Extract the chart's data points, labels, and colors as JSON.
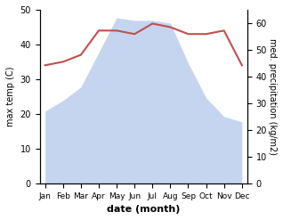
{
  "months": [
    "Jan",
    "Feb",
    "Mar",
    "Apr",
    "May",
    "Jun",
    "Jul",
    "Aug",
    "Sep",
    "Oct",
    "Nov",
    "Dec"
  ],
  "month_indices": [
    0,
    1,
    2,
    3,
    4,
    5,
    6,
    7,
    8,
    9,
    10,
    11
  ],
  "temperature": [
    34,
    35,
    37,
    44,
    44,
    43,
    46,
    45,
    43,
    43,
    44,
    34
  ],
  "precipitation_raw": [
    27,
    31,
    36,
    49,
    62,
    61,
    61,
    60,
    45,
    32,
    25,
    23
  ],
  "temp_color": "#c0504d",
  "precip_fill_color": "#c5d5f0",
  "ylabel_left": "max temp (C)",
  "ylabel_right": "med. precipitation (kg/m2)",
  "xlabel": "date (month)",
  "ylim_left": [
    0,
    50
  ],
  "ylim_right": [
    0,
    65
  ],
  "yticks_left": [
    0,
    10,
    20,
    30,
    40,
    50
  ],
  "yticks_right": [
    0,
    10,
    20,
    30,
    40,
    50,
    60
  ],
  "background_color": "#ffffff"
}
